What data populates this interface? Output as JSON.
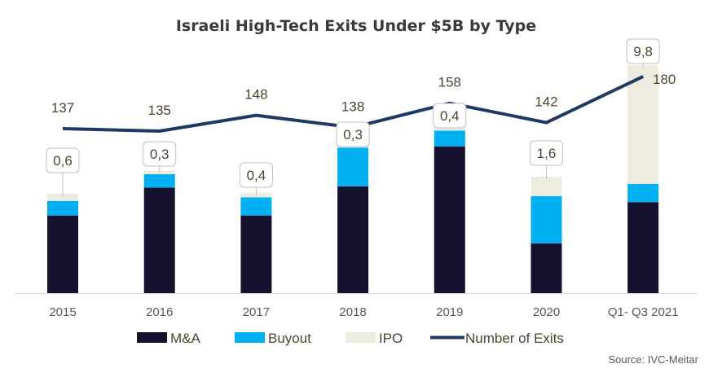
{
  "chart_data": {
    "type": "bar",
    "stacked": true,
    "title": "Israeli High-Tech Exits Under $5B by Type",
    "categories": [
      "2015",
      "2016",
      "2017",
      "2018",
      "2019",
      "2020",
      "Q1- Q3 2021"
    ],
    "series": [
      {
        "name": "M&A",
        "type": "bar",
        "color": "#14122e",
        "values": [
          6.4,
          8.7,
          6.4,
          8.8,
          12.1,
          4.1,
          7.5
        ]
      },
      {
        "name": "Buyout",
        "type": "bar",
        "color": "#00b0f0",
        "values": [
          1.2,
          1.1,
          1.5,
          3.2,
          1.3,
          3.9,
          1.5
        ]
      },
      {
        "name": "IPO",
        "type": "bar",
        "color": "#eeece1",
        "values": [
          0.6,
          0.3,
          0.4,
          0.3,
          0.4,
          1.6,
          9.8
        ],
        "data_labels": [
          "0,6",
          "0,3",
          "0,4",
          "0,3",
          "0,4",
          "1,6",
          "9,8"
        ]
      },
      {
        "name": "Number of Exits",
        "type": "line",
        "color": "#1f3864",
        "axis": "secondary",
        "values": [
          137,
          135,
          148,
          138,
          158,
          142,
          180
        ],
        "data_labels": [
          "137",
          "135",
          "148",
          "138",
          "158",
          "142",
          "180"
        ]
      }
    ],
    "y_axis_visible": false,
    "grid": false,
    "legend": "bottom",
    "source": "Source: IVC-Meitar"
  }
}
